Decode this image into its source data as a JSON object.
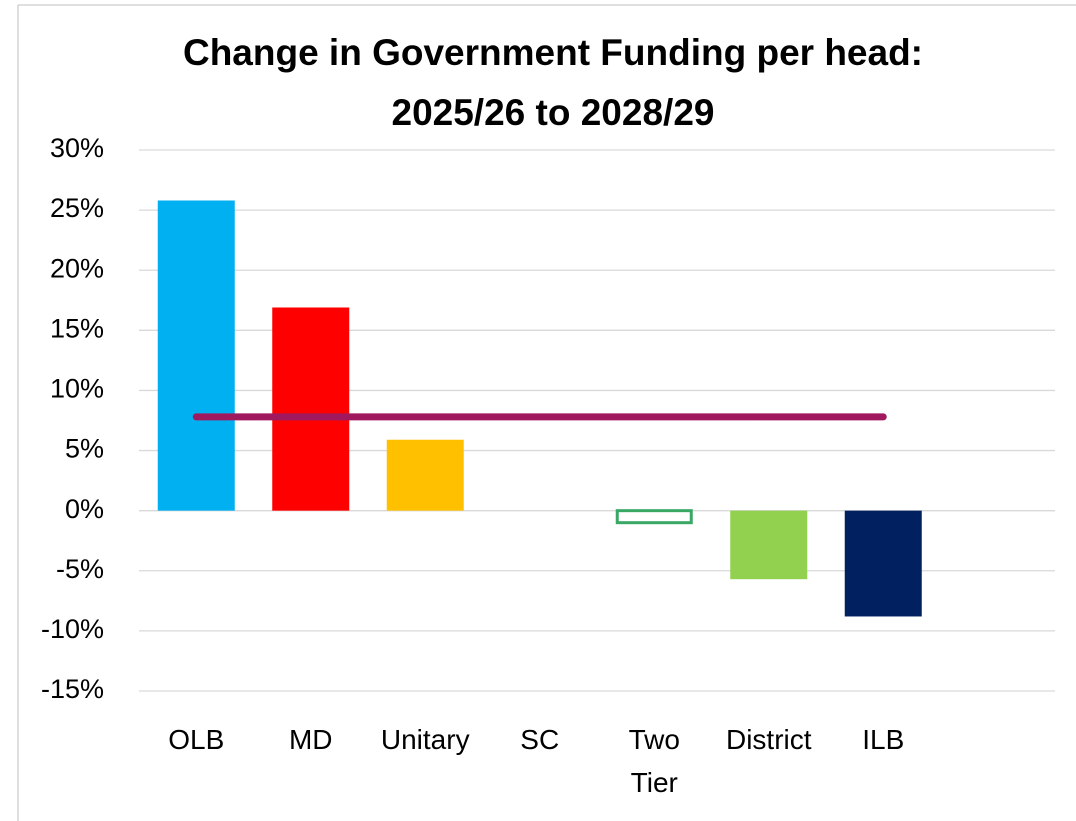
{
  "chart_data": {
    "type": "bar",
    "title": "Change in Government Funding per head: 2025/26 to 2028/29",
    "categories": [
      "OLB",
      "MD",
      "Unitary",
      "SC",
      "Two Tier",
      "District",
      "ILB"
    ],
    "series": [
      {
        "type": "bar",
        "values": [
          25.8,
          16.9,
          5.9,
          0,
          -1.0,
          -5.7,
          -8.8
        ],
        "colors": [
          "#00b0f0",
          "#ff0000",
          "#ffc000",
          "#ffc000",
          "#ffffff",
          "#92d050",
          "#002060"
        ],
        "edge_colors": [
          null,
          null,
          null,
          null,
          "#3aa865",
          null,
          null
        ]
      },
      {
        "type": "line",
        "color": "#a0195e",
        "values": [
          7.8,
          7.8,
          7.8,
          7.8,
          7.8,
          7.8,
          7.8
        ]
      }
    ],
    "ylim": [
      -15,
      30
    ],
    "yticks": [
      {
        "value": -15,
        "label": "-15%"
      },
      {
        "value": -10,
        "label": "-10%"
      },
      {
        "value": -5,
        "label": "-5%"
      },
      {
        "value": 0,
        "label": "0%"
      },
      {
        "value": 5,
        "label": "5%"
      },
      {
        "value": 10,
        "label": "10%"
      },
      {
        "value": 15,
        "label": "15%"
      },
      {
        "value": 20,
        "label": "20%"
      },
      {
        "value": 25,
        "label": "25%"
      },
      {
        "value": 30,
        "label": "30%"
      }
    ],
    "grid": true
  }
}
